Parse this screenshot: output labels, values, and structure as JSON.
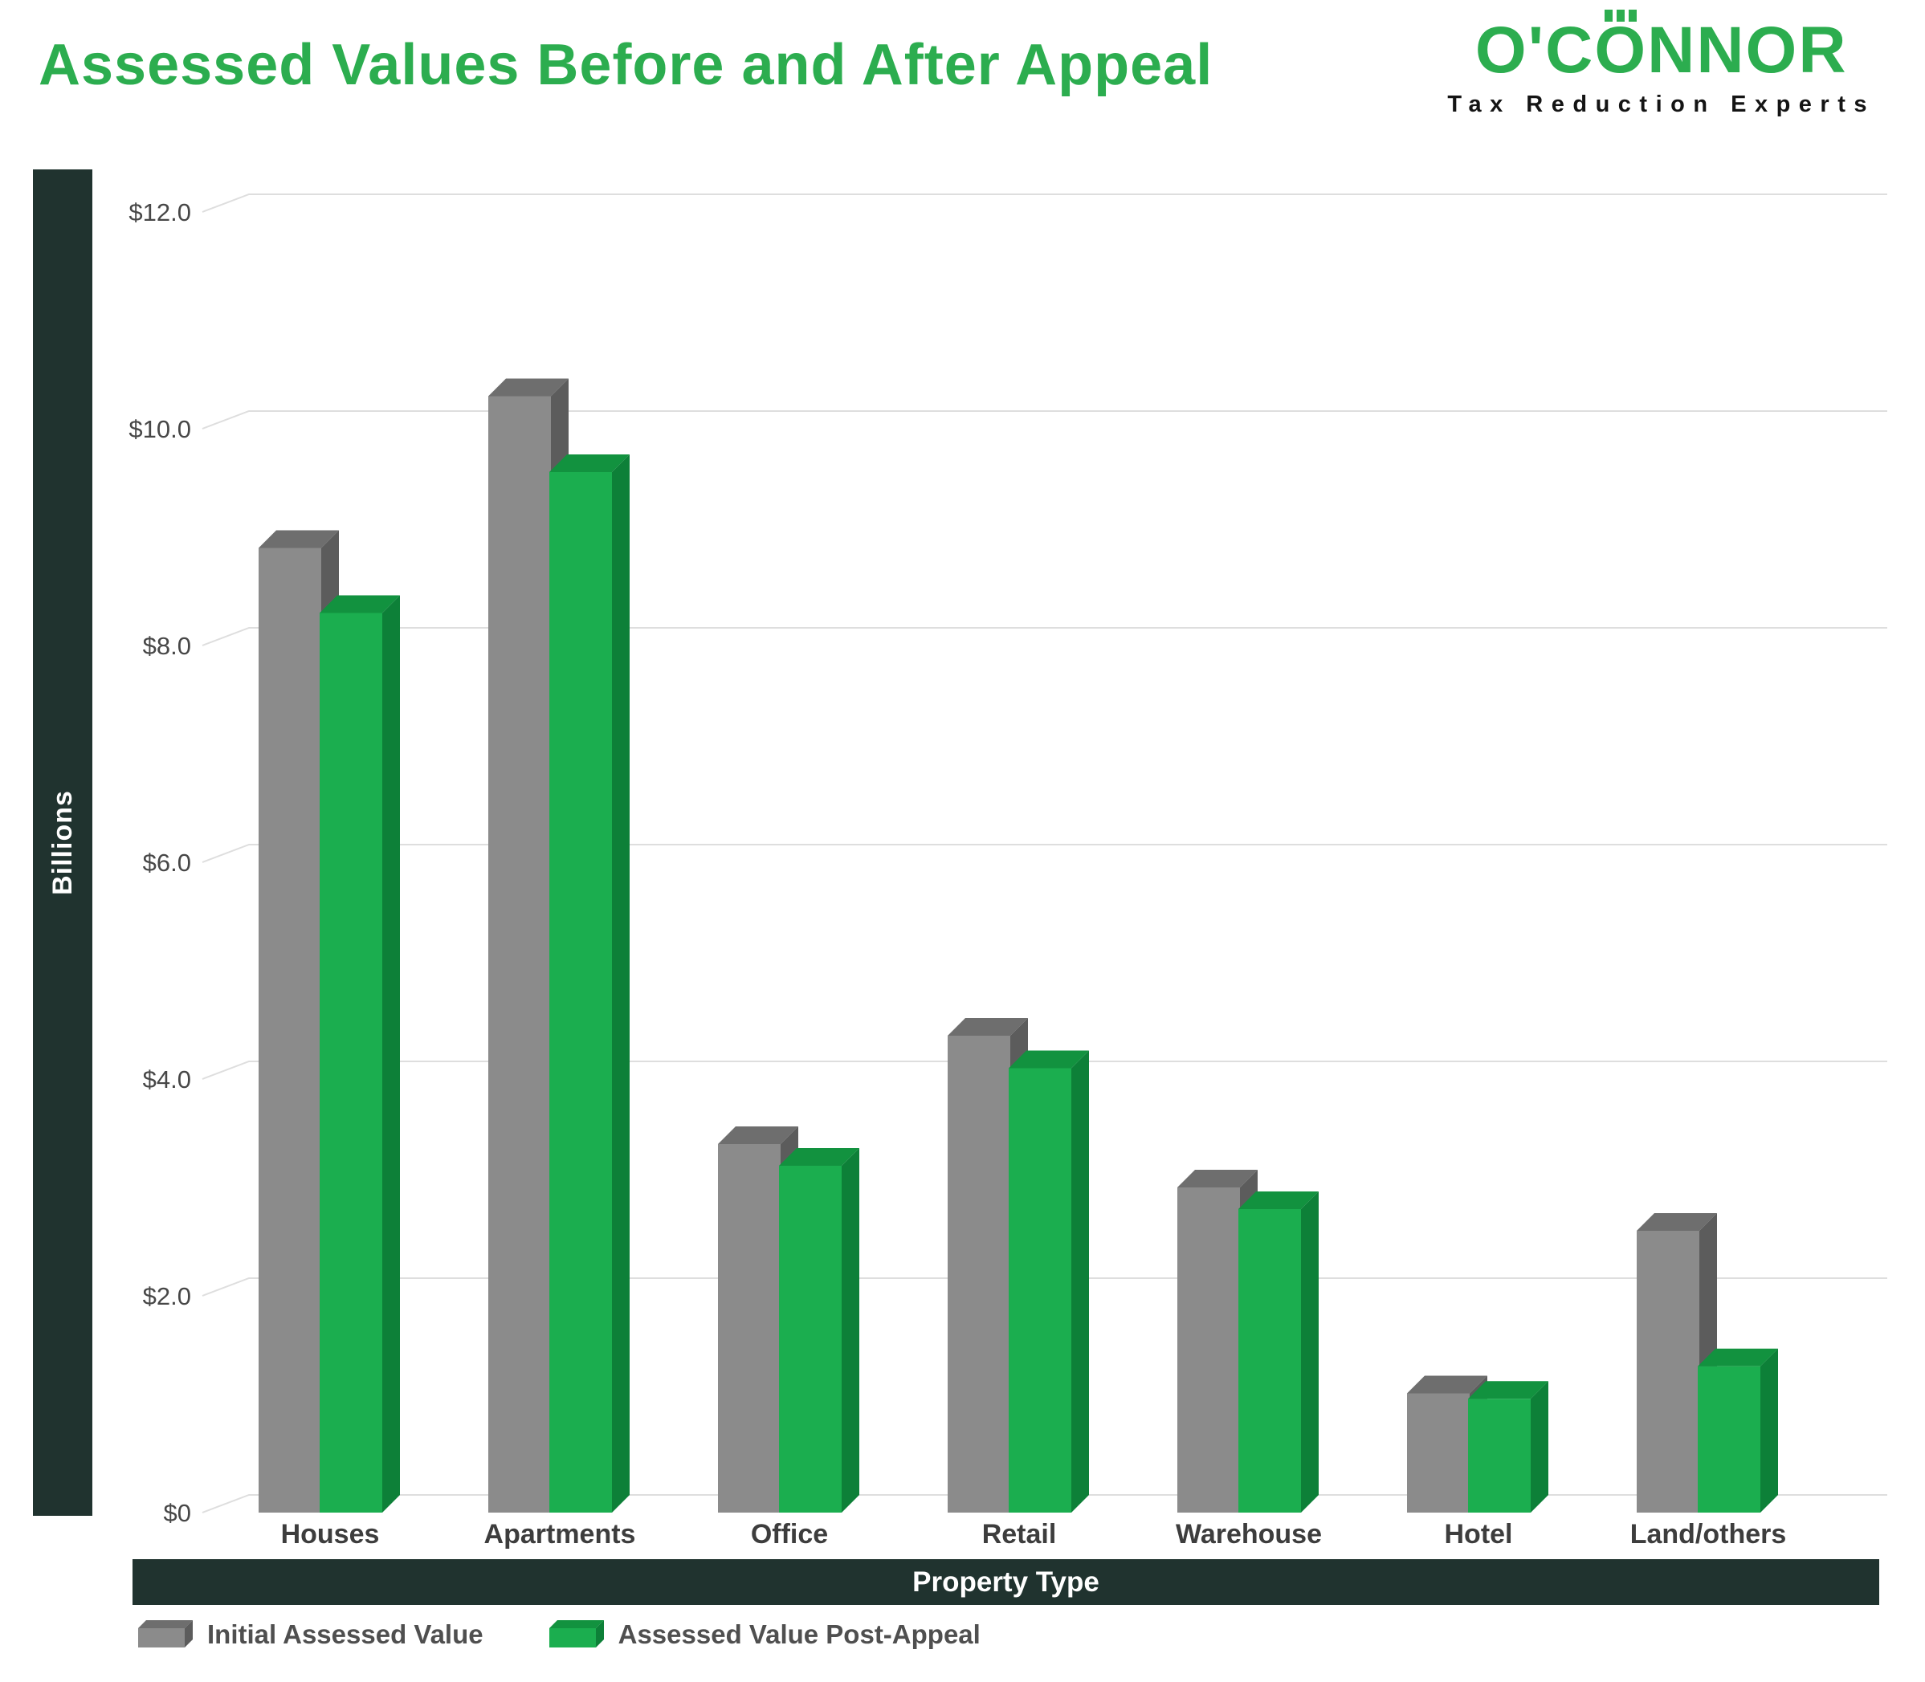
{
  "header": {
    "title": "Assessed Values Before and After Appeal",
    "logo": {
      "part1": "O'C",
      "part2": "O",
      "part3": "NNOR",
      "sub": "Tax Reduction Experts"
    }
  },
  "colors": {
    "accent_green": "#2cad4f",
    "band_dark": "#20332f",
    "gridline": "#dedede",
    "tick_label": "#474747",
    "category_label": "#3d3d3d",
    "legend_text": "#4f4f4f"
  },
  "chart_data": {
    "type": "bar",
    "title": "Assessed Values Before and After Appeal",
    "xlabel": "Property Type",
    "ylabel": "Billions",
    "units": "billions USD",
    "ylim": [
      0,
      12
    ],
    "grid": true,
    "legend_position": "bottom",
    "style": "3d-column",
    "categories": [
      "Houses",
      "Apartments",
      "Office",
      "Retail",
      "Warehouse",
      "Hotel",
      "Land/others"
    ],
    "series": [
      {
        "name": "Initial Assessed Value",
        "color": "#8b8b8b",
        "color_top": "#6e6e6e",
        "color_side": "#5c5c5c",
        "values": [
          8.9,
          10.3,
          3.4,
          4.4,
          3.0,
          1.1,
          2.6
        ]
      },
      {
        "name": "Assessed Value Post-Appeal",
        "color": "#1bae4f",
        "color_top": "#12923f",
        "color_side": "#0d8038",
        "values": [
          8.3,
          9.6,
          3.2,
          4.1,
          2.8,
          1.05,
          1.35
        ]
      }
    ],
    "y_ticks": [
      {
        "label": "$12.0",
        "value": 12
      },
      {
        "label": "$10.0",
        "value": 10
      },
      {
        "label": "$8.0",
        "value": 8
      },
      {
        "label": "$6.0",
        "value": 6
      },
      {
        "label": "$4.0",
        "value": 4
      },
      {
        "label": "$2.0",
        "value": 2
      },
      {
        "label": "$0",
        "value": 0
      }
    ],
    "gridline_color": "#dedede"
  }
}
